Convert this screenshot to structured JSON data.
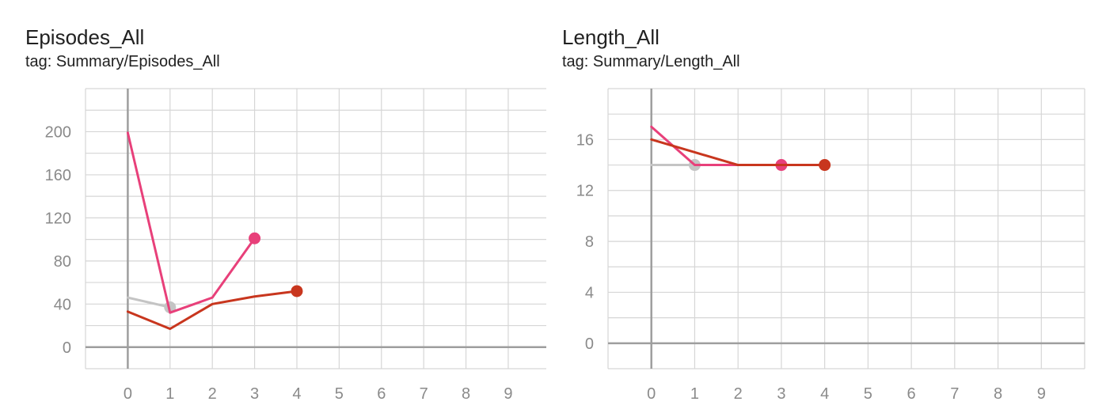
{
  "panels": [
    {
      "title": "Episodes_All",
      "tag": "tag: Summary/Episodes_All"
    },
    {
      "title": "Length_All",
      "tag": "tag: Summary/Length_All"
    }
  ],
  "colors": {
    "grid": "#d6d6d6",
    "axis": "#9e9e9e",
    "tick_text": "#8a8a8a",
    "series_gray": "#c4c4c4",
    "series_pink": "#e8407a",
    "series_red": "#c8361e"
  },
  "chart_data": [
    {
      "type": "line",
      "title": "Episodes_All",
      "xlim": [
        -1,
        9.9
      ],
      "ylim": [
        -20,
        240
      ],
      "x_ticks": [
        0,
        1,
        2,
        3,
        4,
        5,
        6,
        7,
        8,
        9
      ],
      "y_ticks": [
        0,
        40,
        80,
        120,
        160,
        200
      ],
      "grid": true,
      "series": [
        {
          "color": "#c4c4c4",
          "x": [
            0,
            1
          ],
          "y": [
            46,
            37
          ]
        },
        {
          "color": "#e8407a",
          "x": [
            0,
            1,
            2,
            3
          ],
          "y": [
            199,
            32,
            46,
            101
          ]
        },
        {
          "color": "#c8361e",
          "x": [
            0,
            1,
            2,
            3,
            4
          ],
          "y": [
            33,
            17,
            40,
            47,
            52
          ]
        }
      ]
    },
    {
      "type": "line",
      "title": "Length_All",
      "xlim": [
        -1,
        10
      ],
      "ylim": [
        -2,
        20
      ],
      "x_ticks": [
        0,
        1,
        2,
        3,
        4,
        5,
        6,
        7,
        8,
        9
      ],
      "y_ticks": [
        0,
        4,
        8,
        12,
        16
      ],
      "grid": true,
      "series": [
        {
          "color": "#c4c4c4",
          "x": [
            0,
            1
          ],
          "y": [
            14,
            14
          ]
        },
        {
          "color": "#e8407a",
          "x": [
            0,
            1,
            2,
            3
          ],
          "y": [
            17,
            14,
            14,
            14
          ]
        },
        {
          "color": "#c8361e",
          "x": [
            0,
            1,
            2,
            3,
            4
          ],
          "y": [
            16,
            15,
            14,
            14,
            14
          ]
        }
      ]
    }
  ]
}
